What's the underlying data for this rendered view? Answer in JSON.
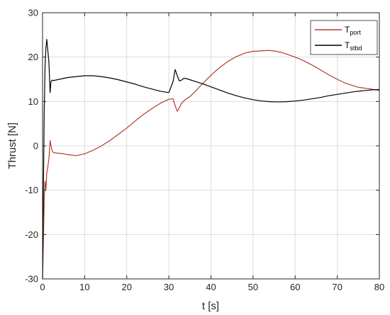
{
  "chart_data": {
    "type": "line",
    "xlabel": "t [s]",
    "ylabel": "Thrust [N]",
    "xlim": [
      0,
      80
    ],
    "ylim": [
      -30,
      30
    ],
    "xticks": [
      0,
      10,
      20,
      30,
      40,
      50,
      60,
      70,
      80
    ],
    "yticks": [
      -30,
      -20,
      -10,
      0,
      10,
      20,
      30
    ],
    "xtick_labels": [
      "0",
      "10",
      "20",
      "30",
      "40",
      "50",
      "60",
      "70",
      "80"
    ],
    "ytick_labels": [
      "-30",
      "-20",
      "-10",
      "0",
      "10",
      "20",
      "30"
    ],
    "grid": true,
    "legend_position": "top-right",
    "series": [
      {
        "name_main": "T",
        "name_sub": "port",
        "color": "#b03a2e",
        "x": [
          0,
          0.2,
          0.4,
          0.6,
          0.8,
          1.0,
          1.2,
          1.5,
          1.8,
          2.0,
          2.3,
          2.6,
          3,
          4,
          5,
          6,
          7,
          8,
          10,
          12,
          14,
          16,
          18,
          20,
          22,
          24,
          26,
          28,
          30,
          31,
          31.5,
          32,
          32.5,
          33,
          34,
          35,
          36,
          38,
          40,
          42,
          44,
          46,
          48,
          50,
          52,
          53.5,
          55,
          57,
          60,
          62,
          65,
          68,
          70,
          72,
          75,
          78,
          80
        ],
        "y": [
          -30,
          -22,
          -12,
          -8,
          -10,
          -6,
          -5,
          -3,
          1.2,
          0,
          -1.2,
          -1.5,
          -1.6,
          -1.7,
          -1.8,
          -2.0,
          -2.1,
          -2.2,
          -1.8,
          -1.0,
          0.0,
          1.2,
          2.6,
          4.0,
          5.6,
          7.1,
          8.4,
          9.6,
          10.5,
          10.6,
          9.0,
          7.8,
          8.6,
          9.6,
          10.5,
          11.1,
          12.0,
          14.0,
          15.9,
          17.6,
          19.0,
          20.1,
          20.9,
          21.3,
          21.4,
          21.5,
          21.4,
          21.0,
          20.0,
          19.2,
          17.7,
          16.0,
          15.0,
          14.1,
          13.2,
          12.8,
          12.5
        ]
      },
      {
        "name_main": "T",
        "name_sub": "stbd",
        "color": "#000000",
        "x": [
          0,
          0.2,
          0.4,
          0.6,
          0.8,
          1.0,
          1.2,
          1.5,
          1.8,
          2.0,
          2.3,
          2.6,
          3,
          4,
          5,
          6,
          8,
          10,
          11,
          12,
          14,
          16,
          18,
          20,
          22,
          24,
          26,
          28,
          30,
          31,
          31.5,
          32,
          32.5,
          33,
          33.5,
          34,
          35,
          36,
          38,
          40,
          42,
          44,
          46,
          48,
          50,
          52,
          54,
          56,
          58,
          60,
          62,
          64,
          66,
          68,
          70,
          72,
          74,
          76,
          78,
          80
        ],
        "y": [
          -30,
          -10,
          8,
          18,
          22,
          24,
          22,
          19,
          12,
          14.5,
          14.8,
          14.7,
          14.8,
          15.0,
          15.2,
          15.4,
          15.6,
          15.8,
          15.8,
          15.8,
          15.6,
          15.3,
          14.9,
          14.4,
          13.9,
          13.3,
          12.8,
          12.3,
          12.0,
          14.5,
          17.2,
          15.8,
          14.6,
          14.8,
          15.2,
          15.2,
          14.9,
          14.6,
          14.0,
          13.3,
          12.6,
          11.9,
          11.3,
          10.8,
          10.4,
          10.1,
          9.95,
          9.9,
          9.95,
          10.1,
          10.3,
          10.6,
          10.9,
          11.3,
          11.6,
          11.9,
          12.2,
          12.4,
          12.6,
          12.7
        ]
      }
    ]
  }
}
